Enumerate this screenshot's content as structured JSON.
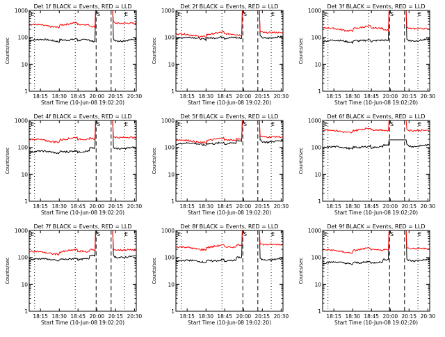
{
  "chart_data": [
    {
      "type": "line",
      "title": "Det 1f BLACK = Events, RED = LLD",
      "ylabel": "Counts/sec",
      "xlabel": "Start Time (10-Jun-08 19:02:20)",
      "yscale": "log",
      "ylim": [
        1,
        1000
      ],
      "x_ticks": [
        "18:15",
        "18:30",
        "18:45",
        "20:00",
        "20:15",
        "20:30"
      ],
      "y_ticks": [
        "1",
        "10",
        "100",
        "1000"
      ],
      "markers": [
        "E",
        "S",
        "E"
      ],
      "series": [
        {
          "color": "#000000",
          "level": 75,
          "peak": 1000,
          "jump_from": 65,
          "drop_to": 75
        },
        {
          "color": "#ff0000",
          "level": 270,
          "peak": 1000,
          "jump_from": 250,
          "drop_to": 300
        }
      ]
    },
    {
      "type": "line",
      "title": "Det 2f BLACK = Events, RED = LLD",
      "ylabel": "Counts/sec",
      "xlabel": "Start Time (10-Jun-08 19:02:20)",
      "yscale": "log",
      "ylim": [
        1,
        1000
      ],
      "x_ticks": [
        "18:15",
        "18:30",
        "18:45",
        "20:00",
        "20:15",
        "20:30"
      ],
      "y_ticks": [
        "1",
        "10",
        "100",
        "1000"
      ],
      "markers": [
        "E",
        "S",
        "E"
      ],
      "series": [
        {
          "color": "#000000",
          "level": 90,
          "peak": 1000,
          "jump_from": 85,
          "drop_to": 95
        },
        {
          "color": "#ff0000",
          "level": 120,
          "peak": 1000,
          "jump_from": 120,
          "drop_to": 135
        }
      ]
    },
    {
      "type": "line",
      "title": "Det 3f BLACK = Events, RED = LLD",
      "ylabel": "Counts/sec",
      "xlabel": "Start Time (10-Jun-08 19:02:20)",
      "yscale": "log",
      "ylim": [
        1,
        1000
      ],
      "x_ticks": [
        "18:15",
        "18:30",
        "18:45",
        "20:00",
        "20:15",
        "20:30"
      ],
      "y_ticks": [
        "1",
        "10",
        "100",
        "1000"
      ],
      "markers": [
        "E",
        "S",
        "E"
      ],
      "series": [
        {
          "color": "#000000",
          "level": 70,
          "peak": 1000,
          "jump_from": 70,
          "drop_to": 75
        },
        {
          "color": "#ff0000",
          "level": 200,
          "peak": 1000,
          "jump_from": 190,
          "drop_to": 190
        }
      ]
    },
    {
      "type": "line",
      "title": "Det 4f BLACK = Events, RED = LLD",
      "ylabel": "Counts/sec",
      "xlabel": "Start Time (10-Jun-08 19:02:20)",
      "yscale": "log",
      "ylim": [
        1,
        1000
      ],
      "x_ticks": [
        "18:15",
        "18:30",
        "18:45",
        "20:00",
        "20:15",
        "20:30"
      ],
      "y_ticks": [
        "1",
        "10",
        "100",
        "1000"
      ],
      "markers": [
        "E",
        "S",
        "E"
      ],
      "series": [
        {
          "color": "#000000",
          "level": 65,
          "peak": 1000,
          "jump_from": 85,
          "drop_to": 90
        },
        {
          "color": "#ff0000",
          "level": 180,
          "peak": 1000,
          "jump_from": 210,
          "drop_to": 210
        }
      ]
    },
    {
      "type": "line",
      "title": "Det 5f BLACK = Events, RED = LLD",
      "ylabel": "Counts/sec",
      "xlabel": "Start Time (10-Jun-08 19:02:20)",
      "yscale": "log",
      "ylim": [
        1,
        1000
      ],
      "x_ticks": [
        "18:15",
        "18:30",
        "18:45",
        "20:00",
        "20:15",
        "20:30"
      ],
      "y_ticks": [
        "1",
        "10",
        "100",
        "1000"
      ],
      "markers": [
        "E",
        "S",
        "E"
      ],
      "series": [
        {
          "color": "#000000",
          "level": 130,
          "peak": 1000,
          "jump_from": 160,
          "drop_to": 160
        },
        {
          "color": "#ff0000",
          "level": 170,
          "peak": 1000,
          "jump_from": 200,
          "drop_to": 220
        }
      ]
    },
    {
      "type": "line",
      "title": "Det 6f BLACK = Events, RED = LLD",
      "ylabel": "Counts/sec",
      "xlabel": "Start Time (10-Jun-08 19:02:20)",
      "yscale": "log",
      "ylim": [
        1,
        1000
      ],
      "x_ticks": [
        "18:15",
        "18:30",
        "18:45",
        "20:00",
        "20:15",
        "20:30"
      ],
      "y_ticks": [
        "1",
        "10",
        "100",
        "1000"
      ],
      "markers": [
        "E",
        "S",
        "E"
      ],
      "series": [
        {
          "color": "#000000",
          "level": 95,
          "peak": 190,
          "jump_from": 110,
          "drop_to": 110
        },
        {
          "color": "#ff0000",
          "level": 400,
          "peak": 1000,
          "jump_from": 420,
          "drop_to": 380
        }
      ]
    },
    {
      "type": "line",
      "title": "Det 7f BLACK = Events, RED = LLD",
      "ylabel": "Counts/sec",
      "xlabel": "Start Time (10-Jun-08 19:02:20)",
      "yscale": "log",
      "ylim": [
        1,
        1000
      ],
      "x_ticks": [
        "18:15",
        "18:30",
        "18:45",
        "20:00",
        "20:15",
        "20:30"
      ],
      "y_ticks": [
        "1",
        "10",
        "100",
        "1000"
      ],
      "markers": [
        "E",
        "S",
        "E"
      ],
      "series": [
        {
          "color": "#000000",
          "level": 80,
          "peak": 1000,
          "jump_from": 110,
          "drop_to": 100
        },
        {
          "color": "#ff0000",
          "level": 150,
          "peak": 1000,
          "jump_from": 190,
          "drop_to": 170
        }
      ]
    },
    {
      "type": "line",
      "title": "Det 8f BLACK = Events, RED = LLD",
      "ylabel": "Counts/sec",
      "xlabel": "Start Time (10-Jun-08 19:02:20)",
      "yscale": "log",
      "ylim": [
        1,
        1000
      ],
      "x_ticks": [
        "18:15",
        "18:30",
        "18:45",
        "20:00",
        "20:15",
        "20:30"
      ],
      "y_ticks": [
        "1",
        "10",
        "100",
        "1000"
      ],
      "markers": [
        "E",
        "S",
        "E"
      ],
      "series": [
        {
          "color": "#000000",
          "level": 70,
          "peak": 1000,
          "jump_from": 90,
          "drop_to": 80
        },
        {
          "color": "#ff0000",
          "level": 220,
          "peak": 1000,
          "jump_from": 290,
          "drop_to": 270
        }
      ]
    },
    {
      "type": "line",
      "title": "Det 9f BLACK = Events, RED = LLD",
      "ylabel": "Counts/sec",
      "xlabel": "Start Time (10-Jun-08 19:02:20)",
      "yscale": "log",
      "ylim": [
        1,
        1000
      ],
      "x_ticks": [
        "18:15",
        "18:30",
        "18:45",
        "20:00",
        "20:15",
        "20:30"
      ],
      "y_ticks": [
        "1",
        "10",
        "100",
        "1000"
      ],
      "markers": [
        "E",
        "S",
        "E"
      ],
      "series": [
        {
          "color": "#000000",
          "level": 60,
          "peak": 1000,
          "jump_from": 75,
          "drop_to": 75
        },
        {
          "color": "#ff0000",
          "level": 170,
          "peak": 1000,
          "jump_from": 190,
          "drop_to": 190
        }
      ]
    }
  ]
}
